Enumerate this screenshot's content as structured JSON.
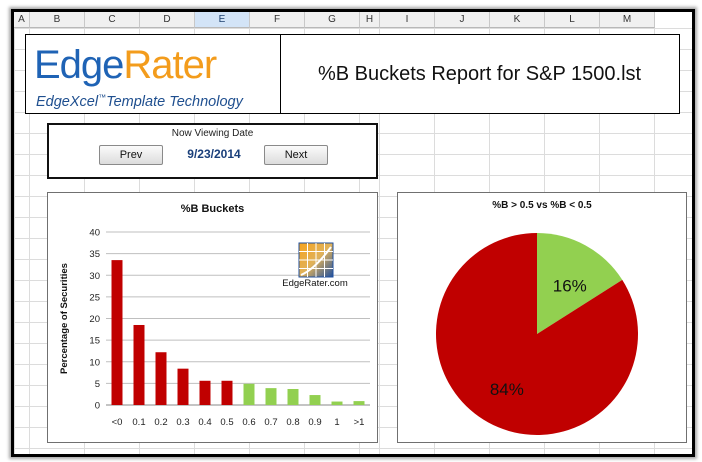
{
  "spreadsheet": {
    "columns": [
      "A",
      "B",
      "C",
      "D",
      "E",
      "F",
      "G",
      "H",
      "I",
      "J",
      "K",
      "L",
      "M"
    ],
    "selected_column": "E"
  },
  "header": {
    "logo_edge": "Edge",
    "logo_rater": "Rater",
    "logo_tagline": "EdgeXcel",
    "logo_tm": "™",
    "logo_tagline_rest": "Template Technology",
    "report_title": "%B Buckets Report for S&P 1500.lst"
  },
  "navigator": {
    "label": "Now Viewing Date",
    "prev_label": "Prev",
    "date": "9/23/2014",
    "next_label": "Next"
  },
  "colors": {
    "red": "#c00000",
    "green": "#92d050",
    "logo_blue": "#1f63b5",
    "logo_orange": "#f39c1c"
  },
  "chart_data": [
    {
      "type": "bar",
      "title": "%B Buckets",
      "ylabel": "Percentage of Securities",
      "xlabel": "",
      "categories": [
        "<0",
        "0.1",
        "0.2",
        "0.3",
        "0.4",
        "0.5",
        "0.6",
        "0.7",
        "0.8",
        "0.9",
        "1",
        ">1"
      ],
      "values": [
        33.5,
        18.5,
        12.2,
        8.4,
        5.6,
        5.6,
        4.9,
        3.9,
        3.7,
        2.3,
        0.8,
        0.9
      ],
      "bar_colors": [
        "red",
        "red",
        "red",
        "red",
        "red",
        "red",
        "green",
        "green",
        "green",
        "green",
        "green",
        "green"
      ],
      "ylim": [
        0,
        40
      ],
      "yticks": [
        0,
        5,
        10,
        15,
        20,
        25,
        30,
        35,
        40
      ],
      "grid": true,
      "watermark": "EdgeRater.com"
    },
    {
      "type": "pie",
      "title": "%B > 0.5 vs %B < 0.5",
      "slices": [
        {
          "label": "16%",
          "value": 16,
          "color": "green"
        },
        {
          "label": "84%",
          "value": 84,
          "color": "red"
        }
      ]
    }
  ]
}
